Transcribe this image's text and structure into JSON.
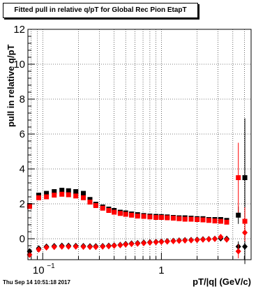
{
  "chart_data": {
    "type": "scatter",
    "title": "Fitted pull in relative q/pT for Global Rec Pion EtapT",
    "xlabel": "pT/|q| (GeV/c)",
    "ylabel": "pull in relative q/pT",
    "timestamp": "Thu Sep 14 10:51:18 2017",
    "xscale": "log",
    "xlim": [
      0.075,
      5.7
    ],
    "ylim": [
      -1.2,
      12
    ],
    "grid": true,
    "legend": "none",
    "x_tick_labels": [
      {
        "value": 0.1,
        "base": "10",
        "exp": "−1"
      },
      {
        "value": 1,
        "base": "1",
        "exp": ""
      }
    ],
    "y_ticks": [
      0,
      2,
      4,
      6,
      8,
      10,
      12
    ],
    "series": [
      {
        "color": "#000000",
        "marker": "square",
        "x": [
          0.0775,
          0.0925,
          0.1075,
          0.125,
          0.145,
          0.165,
          0.19,
          0.22,
          0.25,
          0.28,
          0.32,
          0.36,
          0.4,
          0.45,
          0.5,
          0.56,
          0.63,
          0.71,
          0.8,
          0.9,
          1.0,
          1.12,
          1.26,
          1.41,
          1.58,
          1.78,
          2.0,
          2.24,
          2.51,
          2.82,
          3.16,
          3.55,
          4.45,
          5.05
        ],
        "y": [
          1.9,
          2.5,
          2.6,
          2.7,
          2.78,
          2.75,
          2.7,
          2.6,
          2.25,
          1.98,
          1.82,
          1.7,
          1.62,
          1.52,
          1.48,
          1.42,
          1.38,
          1.33,
          1.3,
          1.28,
          1.27,
          1.25,
          1.22,
          1.2,
          1.2,
          1.18,
          1.15,
          1.15,
          1.1,
          1.1,
          1.1,
          1.05,
          1.35,
          3.5
        ],
        "err": [
          0.06,
          0.06,
          0.05,
          0.05,
          0.05,
          0.05,
          0.04,
          0.04,
          0.04,
          0.04,
          0.03,
          0.03,
          0.03,
          0.03,
          0.03,
          0.03,
          0.03,
          0.03,
          0.03,
          0.03,
          0.03,
          0.03,
          0.03,
          0.03,
          0.03,
          0.04,
          0.04,
          0.04,
          0.05,
          0.05,
          0.06,
          0.08,
          0.5,
          3.4
        ]
      },
      {
        "color": "#ff0000",
        "marker": "square",
        "x": [
          0.0775,
          0.0925,
          0.1075,
          0.125,
          0.145,
          0.165,
          0.19,
          0.22,
          0.25,
          0.28,
          0.32,
          0.36,
          0.4,
          0.45,
          0.5,
          0.56,
          0.63,
          0.71,
          0.8,
          0.9,
          1.0,
          1.12,
          1.26,
          1.41,
          1.58,
          1.78,
          2.0,
          2.24,
          2.51,
          2.82,
          3.16,
          3.55,
          4.45,
          5.05
        ],
        "y": [
          1.85,
          2.35,
          2.4,
          2.5,
          2.55,
          2.52,
          2.45,
          2.35,
          2.1,
          1.9,
          1.75,
          1.62,
          1.52,
          1.45,
          1.4,
          1.35,
          1.3,
          1.28,
          1.25,
          1.22,
          1.22,
          1.2,
          1.18,
          1.15,
          1.12,
          1.12,
          1.1,
          1.08,
          1.05,
          1.02,
          1.0,
          0.95,
          3.5,
          1.0
        ],
        "err": [
          0.06,
          0.06,
          0.05,
          0.05,
          0.05,
          0.05,
          0.04,
          0.04,
          0.04,
          0.04,
          0.03,
          0.03,
          0.03,
          0.03,
          0.03,
          0.03,
          0.03,
          0.03,
          0.03,
          0.03,
          0.03,
          0.03,
          0.03,
          0.03,
          0.03,
          0.04,
          0.04,
          0.04,
          0.05,
          0.05,
          0.06,
          0.08,
          2.0,
          0.8
        ]
      },
      {
        "color": "#000000",
        "marker": "diamond",
        "x": [
          0.0775,
          0.0925,
          0.1075,
          0.125,
          0.145,
          0.165,
          0.19,
          0.22,
          0.25,
          0.28,
          0.32,
          0.36,
          0.4,
          0.45,
          0.5,
          0.56,
          0.63,
          0.71,
          0.8,
          0.9,
          1.0,
          1.12,
          1.26,
          1.41,
          1.58,
          1.78,
          2.0,
          2.24,
          2.51,
          2.82,
          3.16,
          3.55,
          4.45,
          5.05
        ],
        "y": [
          -0.72,
          -0.55,
          -0.45,
          -0.42,
          -0.4,
          -0.4,
          -0.41,
          -0.42,
          -0.43,
          -0.43,
          -0.42,
          -0.4,
          -0.38,
          -0.35,
          -0.3,
          -0.27,
          -0.25,
          -0.22,
          -0.2,
          -0.18,
          -0.16,
          -0.14,
          -0.12,
          -0.1,
          -0.08,
          -0.07,
          -0.05,
          -0.03,
          -0.02,
          0.0,
          0.02,
          0.0,
          -0.45,
          -0.45
        ],
        "err": [
          0.06,
          0.05,
          0.05,
          0.04,
          0.04,
          0.04,
          0.04,
          0.03,
          0.03,
          0.03,
          0.03,
          0.03,
          0.03,
          0.03,
          0.03,
          0.03,
          0.03,
          0.03,
          0.03,
          0.03,
          0.03,
          0.03,
          0.03,
          0.03,
          0.03,
          0.04,
          0.04,
          0.04,
          0.05,
          0.05,
          0.06,
          0.08,
          0.3,
          1.0
        ]
      },
      {
        "color": "#ff0000",
        "marker": "diamond",
        "x": [
          0.0775,
          0.0925,
          0.1075,
          0.125,
          0.145,
          0.165,
          0.19,
          0.22,
          0.25,
          0.28,
          0.32,
          0.36,
          0.4,
          0.45,
          0.5,
          0.56,
          0.63,
          0.71,
          0.8,
          0.9,
          1.0,
          1.12,
          1.26,
          1.41,
          1.58,
          1.78,
          2.0,
          2.24,
          2.51,
          2.82,
          3.16,
          3.55,
          4.45,
          5.05
        ],
        "y": [
          -0.92,
          -0.62,
          -0.5,
          -0.47,
          -0.45,
          -0.45,
          -0.45,
          -0.46,
          -0.47,
          -0.47,
          -0.45,
          -0.43,
          -0.4,
          -0.37,
          -0.33,
          -0.3,
          -0.28,
          -0.25,
          -0.22,
          -0.2,
          -0.18,
          -0.16,
          -0.14,
          -0.12,
          -0.1,
          -0.09,
          -0.07,
          -0.05,
          -0.03,
          -0.01,
          0.1,
          -0.05,
          -0.72,
          0.35
        ],
        "err": [
          0.06,
          0.05,
          0.05,
          0.04,
          0.04,
          0.04,
          0.04,
          0.03,
          0.03,
          0.03,
          0.03,
          0.03,
          0.03,
          0.03,
          0.03,
          0.03,
          0.03,
          0.03,
          0.03,
          0.03,
          0.03,
          0.03,
          0.03,
          0.03,
          0.03,
          0.04,
          0.04,
          0.04,
          0.05,
          0.05,
          0.06,
          0.08,
          0.4,
          0.5
        ]
      }
    ]
  }
}
